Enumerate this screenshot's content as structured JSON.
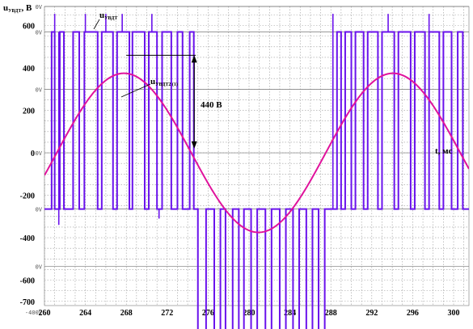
{
  "chart_data": {
    "type": "line",
    "title": "",
    "ylabel_main": "u",
    "ylabel_sub": "УВДТ",
    "ylabel_unit": ", В",
    "xlabel": "t, мс",
    "xlim": [
      260,
      301.5
    ],
    "ylim": [
      -720,
      690
    ],
    "x_ticks": [
      "260",
      "264",
      "268",
      "272",
      "276",
      "280",
      "284",
      "288",
      "292",
      "296",
      "300"
    ],
    "y_ticks": [
      {
        "value": 600,
        "label": "600"
      },
      {
        "value": 400,
        "label": "400"
      },
      {
        "value": 200,
        "label": "200"
      },
      {
        "value": 0,
        "label": "0"
      },
      {
        "value": -200,
        "label": "-200"
      },
      {
        "value": -400,
        "label": "-400"
      },
      {
        "value": -600,
        "label": "-600"
      },
      {
        "value": -700,
        "label": "-700"
      }
    ],
    "ghost_ticks": [
      {
        "value": 690,
        "label": "0V"
      },
      {
        "value": 570,
        "label": "0V"
      },
      {
        "value": 300,
        "label": "0V"
      },
      {
        "value": 0,
        "label": "0V"
      },
      {
        "value": -265,
        "label": "0V"
      },
      {
        "value": -535,
        "label": "0V"
      },
      {
        "value": -750,
        "label": "-400V"
      }
    ],
    "grid": true,
    "series": [
      {
        "name": "UВДТ",
        "name_main": "u",
        "name_sub": "УВДТ",
        "color": "#6a12ec",
        "kind": "pwm",
        "levels": [
          570,
          -265,
          -950
        ],
        "spike_top": 655,
        "pulses": [
          {
            "x0": 260.7,
            "x1": 261.0,
            "lvl": 1
          },
          {
            "x0": 261.5,
            "x1": 261.9,
            "lvl": 1
          },
          {
            "x0": 262.8,
            "x1": 263.4,
            "lvl": 1
          },
          {
            "x0": 263.9,
            "x1": 265.2,
            "lvl": 1
          },
          {
            "x0": 265.6,
            "x1": 266.7,
            "lvl": 1
          },
          {
            "x0": 267.1,
            "x1": 268.3,
            "lvl": 1
          },
          {
            "x0": 268.6,
            "x1": 269.8,
            "lvl": 1
          },
          {
            "x0": 270.2,
            "x1": 271.0,
            "lvl": 1
          },
          {
            "x0": 271.5,
            "x1": 272.4,
            "lvl": 1
          },
          {
            "x0": 273.0,
            "x1": 273.5,
            "lvl": 1
          },
          {
            "x0": 274.2,
            "x1": 274.6,
            "lvl": 1
          },
          {
            "x0": 275.0,
            "x1": 275.8,
            "lvl": -1
          },
          {
            "x0": 276.6,
            "x1": 277.2,
            "lvl": -1
          },
          {
            "x0": 277.7,
            "x1": 278.4,
            "lvl": -1
          },
          {
            "x0": 279.0,
            "x1": 279.5,
            "lvl": -1
          },
          {
            "x0": 280.2,
            "x1": 280.8,
            "lvl": -1
          },
          {
            "x0": 281.6,
            "x1": 282.2,
            "lvl": -1
          },
          {
            "x0": 283.0,
            "x1": 283.6,
            "lvl": -1
          },
          {
            "x0": 284.3,
            "x1": 284.9,
            "lvl": -1
          },
          {
            "x0": 285.6,
            "x1": 286.2,
            "lvl": -1
          },
          {
            "x0": 286.8,
            "x1": 287.4,
            "lvl": -1
          },
          {
            "x0": 288.6,
            "x1": 289.0,
            "lvl": 1
          },
          {
            "x0": 289.4,
            "x1": 290.0,
            "lvl": 1
          },
          {
            "x0": 290.4,
            "x1": 291.2,
            "lvl": 1
          },
          {
            "x0": 291.6,
            "x1": 292.6,
            "lvl": 1
          },
          {
            "x0": 293.0,
            "x1": 294.2,
            "lvl": 1
          },
          {
            "x0": 294.6,
            "x1": 295.8,
            "lvl": 1
          },
          {
            "x0": 296.2,
            "x1": 297.2,
            "lvl": 1
          },
          {
            "x0": 297.6,
            "x1": 298.6,
            "lvl": 1
          },
          {
            "x0": 299.0,
            "x1": 299.8,
            "lvl": 1
          },
          {
            "x0": 300.4,
            "x1": 300.9,
            "lvl": 1
          }
        ],
        "spikes": [
          {
            "x": 261.0,
            "y0": -265,
            "y1": 655
          },
          {
            "x": 261.4,
            "y0": 570,
            "y1": -340
          },
          {
            "x": 264.0,
            "y0": 570,
            "y1": 655
          },
          {
            "x": 266.0,
            "y0": 570,
            "y1": 655
          },
          {
            "x": 267.6,
            "y0": 570,
            "y1": 655
          },
          {
            "x": 270.5,
            "y0": 570,
            "y1": 655
          },
          {
            "x": 271.2,
            "y0": -265,
            "y1": -310
          },
          {
            "x": 288.2,
            "y0": -265,
            "y1": 655
          },
          {
            "x": 293.6,
            "y0": 570,
            "y1": 655
          },
          {
            "x": 297.6,
            "y0": 570,
            "y1": 655
          }
        ]
      },
      {
        "name": "UВДТ2 (1)",
        "name_main": "u",
        "name_sub": "УВДТ2 (1)",
        "color": "#e0139c",
        "kind": "sine",
        "amplitude": 375,
        "period_ms": 26.3,
        "phase_zero_ms": 261.2
      }
    ],
    "annotations": [
      {
        "text": "440 В",
        "x_from": 268,
        "x_to": 274.8,
        "y_top": 460,
        "y_bottom": 20
      }
    ]
  }
}
